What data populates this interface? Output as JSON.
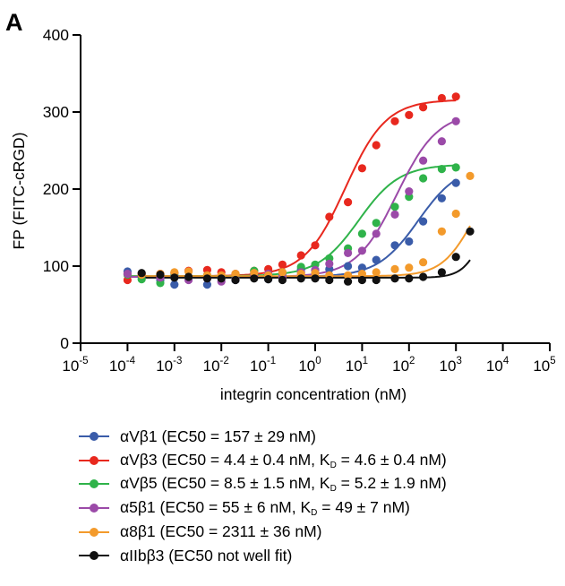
{
  "panel_label": "A",
  "chart_data": {
    "type": "scatter",
    "title": "",
    "ylabel": "FP (FITC-cRGD)",
    "xlabel": "integrin concentration (nM)",
    "x_scale": "log",
    "xlim": [
      1e-05,
      100000
    ],
    "ylim": [
      0,
      400
    ],
    "y_ticks": [
      "0",
      "100",
      "200",
      "300",
      "400"
    ],
    "x_ticks": [
      {
        "base": "10",
        "exp": "-5"
      },
      {
        "base": "10",
        "exp": "-4"
      },
      {
        "base": "10",
        "exp": "-3"
      },
      {
        "base": "10",
        "exp": "-2"
      },
      {
        "base": "10",
        "exp": "-1"
      },
      {
        "base": "10",
        "exp": "0"
      },
      {
        "base": "10",
        "exp": "1"
      },
      {
        "base": "10",
        "exp": "2"
      },
      {
        "base": "10",
        "exp": "3"
      },
      {
        "base": "10",
        "exp": "4"
      },
      {
        "base": "10",
        "exp": "5"
      }
    ],
    "grid": false,
    "legend_position": "below",
    "series": [
      {
        "name": "αVβ1 (EC50 = 157 ± 29 nM)",
        "legend_text": "αVβ1 (EC50 = 157 ± 29 nM)",
        "color": "#3a5ca9",
        "fit": {
          "bottom": 86,
          "top": 232,
          "ec50": 157,
          "hill": 1.0
        },
        "x": [
          0.0001,
          0.0002,
          0.0005,
          0.001,
          0.002,
          0.005,
          0.01,
          0.02,
          0.05,
          0.1,
          0.2,
          0.5,
          1,
          2,
          5,
          10,
          20,
          50,
          100,
          200,
          500,
          1000
        ],
        "y": [
          93,
          87,
          82,
          76,
          84,
          76,
          85,
          82,
          90,
          83,
          90,
          96,
          95,
          96,
          100,
          98,
          108,
          127,
          132,
          158,
          188,
          208
        ]
      },
      {
        "name": "αVβ3 (EC50 = 4.4 ± 0.4 nM, KD = 4.6 ± 0.4 nM)",
        "legend_text": "αVβ3 (EC50 = 4.4 ± 0.4 nM, K",
        "legend_sub": "D",
        "legend_tail": " = 4.6 ± 0.4 nM)",
        "color": "#e8281e",
        "fit": {
          "bottom": 87,
          "top": 316,
          "ec50": 4.4,
          "hill": 1.0
        },
        "x": [
          0.0001,
          0.0002,
          0.0005,
          0.001,
          0.002,
          0.005,
          0.01,
          0.02,
          0.05,
          0.1,
          0.2,
          0.5,
          1,
          2,
          5,
          10,
          20,
          50,
          100,
          200,
          500,
          1000
        ],
        "y": [
          82,
          90,
          90,
          91,
          94,
          95,
          92,
          90,
          94,
          96,
          102,
          114,
          127,
          164,
          183,
          227,
          257,
          288,
          296,
          306,
          318,
          320
        ]
      },
      {
        "name": "αVβ5 (EC50 = 8.5 ± 1.5 nM, KD = 5.2 ± 1.9 nM)",
        "legend_text": "αVβ5 (EC50 = 8.5 ± 1.5 nM, K",
        "legend_sub": "D",
        "legend_tail": " = 5.2 ± 1.9 nM)",
        "color": "#2fb34a",
        "fit": {
          "bottom": 87,
          "top": 232,
          "ec50": 8.5,
          "hill": 1.0
        },
        "x": [
          0.0001,
          0.0002,
          0.0005,
          0.001,
          0.002,
          0.005,
          0.01,
          0.02,
          0.05,
          0.1,
          0.2,
          0.5,
          1,
          2,
          5,
          10,
          20,
          50,
          100,
          200,
          500,
          1000
        ],
        "y": [
          89,
          83,
          78,
          88,
          84,
          88,
          85,
          84,
          94,
          88,
          92,
          99,
          102,
          110,
          123,
          142,
          156,
          177,
          190,
          214,
          226,
          228
        ]
      },
      {
        "name": "α5β1 (EC50 = 55 ± 6 nM, KD = 49 ± 7 nM)",
        "legend_text": "α5β1 (EC50 = 55 ± 6 nM, K",
        "legend_sub": "D",
        "legend_tail": " = 49 ± 7 nM)",
        "color": "#9b4aa8",
        "fit": {
          "bottom": 86,
          "top": 300,
          "ec50": 55,
          "hill": 1.0
        },
        "x": [
          0.0001,
          0.0002,
          0.0005,
          0.001,
          0.002,
          0.005,
          0.01,
          0.02,
          0.05,
          0.1,
          0.2,
          0.5,
          1,
          2,
          5,
          10,
          20,
          50,
          100,
          200,
          500,
          1000
        ],
        "y": [
          90,
          89,
          85,
          86,
          82,
          84,
          80,
          83,
          88,
          90,
          85,
          92,
          95,
          103,
          117,
          120,
          142,
          167,
          197,
          237,
          262,
          288
        ]
      },
      {
        "name": "α8β1 (EC50 = 2311 ± 36 nM)",
        "legend_text": "α8β1 (EC50 = 2311 ± 36 nM)",
        "color": "#f39a2b",
        "fit": {
          "bottom": 87,
          "top": 231,
          "ec50": 2311,
          "hill": 1.3
        },
        "x": [
          0.0002,
          0.0005,
          0.001,
          0.002,
          0.005,
          0.01,
          0.02,
          0.05,
          0.1,
          0.2,
          0.5,
          1,
          2,
          5,
          10,
          20,
          50,
          100,
          200,
          500,
          1000,
          2000
        ],
        "y": [
          89,
          90,
          92,
          93,
          88,
          88,
          90,
          91,
          88,
          92,
          90,
          91,
          88,
          88,
          90,
          92,
          96,
          98,
          105,
          145,
          168,
          217
        ]
      },
      {
        "name": "αIIbβ3 (EC50 not well fit)",
        "legend_text": "αIIbβ3 (EC50 not well fit)",
        "color": "#111111",
        "fit": {
          "bottom": 85,
          "top": 200,
          "ec50": 4000,
          "hill": 2.0
        },
        "x": [
          0.0002,
          0.0005,
          0.001,
          0.002,
          0.005,
          0.01,
          0.02,
          0.05,
          0.1,
          0.2,
          0.5,
          1,
          2,
          5,
          10,
          20,
          50,
          100,
          200,
          500,
          1000,
          2000
        ],
        "y": [
          91,
          89,
          85,
          86,
          84,
          84,
          82,
          84,
          83,
          82,
          84,
          84,
          82,
          80,
          82,
          82,
          84,
          84,
          86,
          92,
          112,
          145
        ]
      }
    ]
  }
}
